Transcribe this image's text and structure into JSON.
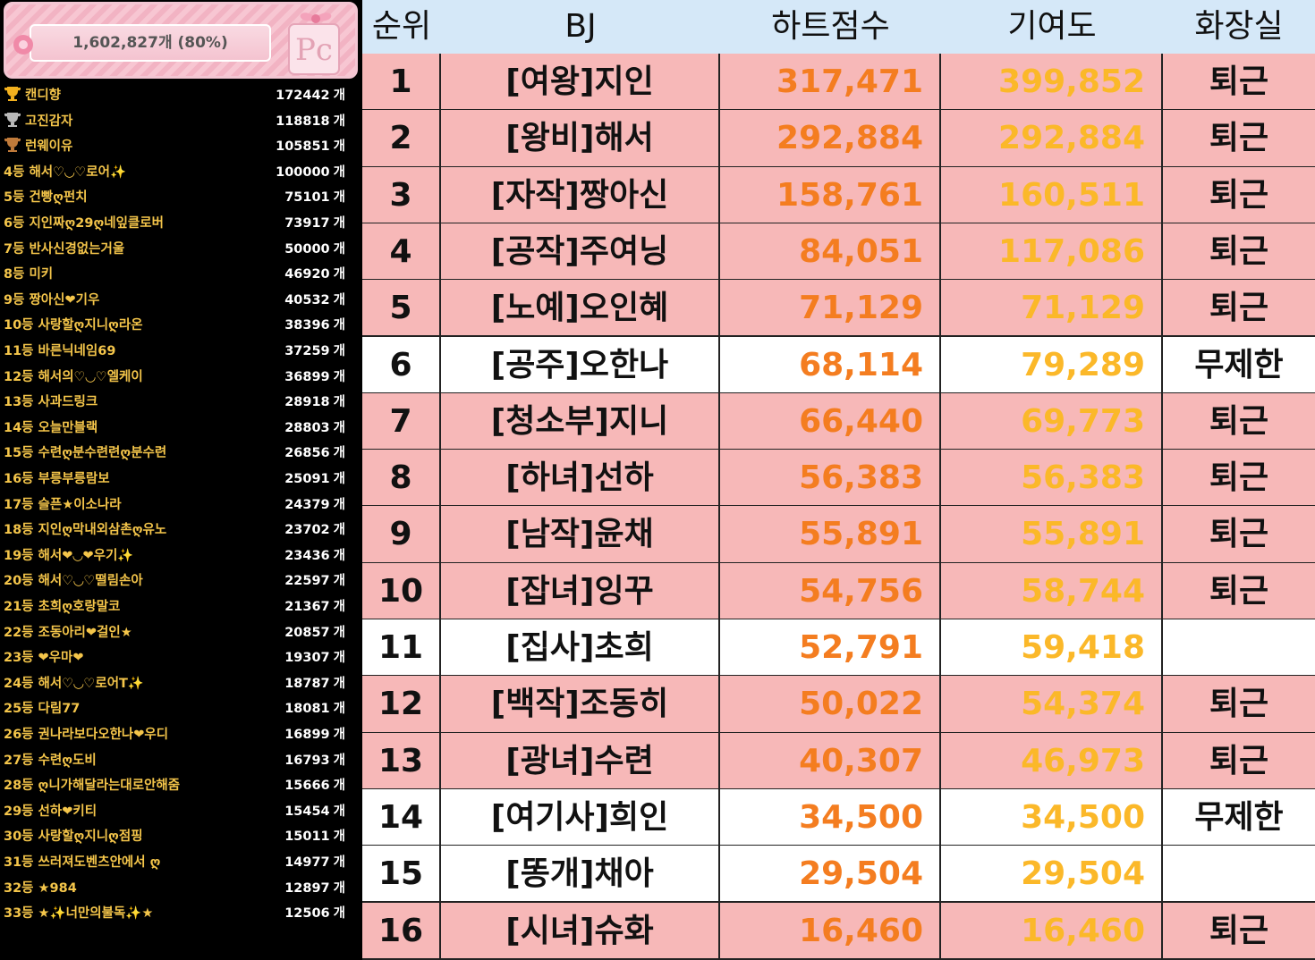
{
  "summary": {
    "total": "1,602,827개 (80%)"
  },
  "donors": {
    "unit": "개",
    "items": [
      {
        "rank": null,
        "trophy": "#f2b01e",
        "name": "캔디향",
        "count": "172442"
      },
      {
        "rank": null,
        "trophy": "#b9b9b9",
        "name": "고진감자",
        "count": "118818"
      },
      {
        "rank": null,
        "trophy": "#c07a3a",
        "name": "런웨이유",
        "count": "105851"
      },
      {
        "rank": "4등",
        "name": "해서♡◡♡로어✨",
        "count": "100000"
      },
      {
        "rank": "5등",
        "name": "건빵ღ펀치",
        "count": "75101"
      },
      {
        "rank": "6등",
        "name": "지인짜ღ29ღ네잎클로버",
        "count": "73917"
      },
      {
        "rank": "7등",
        "name": "반사신경없는거울",
        "count": "50000"
      },
      {
        "rank": "8등",
        "name": "미키",
        "count": "46920"
      },
      {
        "rank": "9등",
        "name": "짱아신❤기우",
        "count": "40532"
      },
      {
        "rank": "10등",
        "name": "사랑할ღ지니ღ라온",
        "count": "38396"
      },
      {
        "rank": "11등",
        "name": "바른닉네임69",
        "count": "37259"
      },
      {
        "rank": "12등",
        "name": "해서의♡◡♡엘케이",
        "count": "36899"
      },
      {
        "rank": "13등",
        "name": "사과드링크",
        "count": "28918"
      },
      {
        "rank": "14등",
        "name": "오늘만블랙",
        "count": "28803"
      },
      {
        "rank": "15등",
        "name": "수련ღ분수련련ღ분수련",
        "count": "26856"
      },
      {
        "rank": "16등",
        "name": "부릉부릉람보",
        "count": "25091"
      },
      {
        "rank": "17등",
        "name": "슬픈★이소나라",
        "count": "24379"
      },
      {
        "rank": "18등",
        "name": "지인ღ막내외삼촌ღ유노",
        "count": "23702"
      },
      {
        "rank": "19등",
        "name": "해서❤◡❤우기✨",
        "count": "23436"
      },
      {
        "rank": "20등",
        "name": "해서♡◡♡떨림손아",
        "count": "22597"
      },
      {
        "rank": "21등",
        "name": "초희ღ호랑말코",
        "count": "21367"
      },
      {
        "rank": "22등",
        "name": "조동아리❤걸인★",
        "count": "20857"
      },
      {
        "rank": "23등",
        "name": "❤우마❤",
        "count": "19307"
      },
      {
        "rank": "24등",
        "name": "해서♡◡♡로어T✨",
        "count": "18787"
      },
      {
        "rank": "25등",
        "name": "다림77",
        "count": "18081"
      },
      {
        "rank": "26등",
        "name": "권나라보다오한나❤우디",
        "count": "16899"
      },
      {
        "rank": "27등",
        "name": "수련ღ도비",
        "count": "16793"
      },
      {
        "rank": "28등",
        "name": "ღ니가해달라는대로안해줌",
        "count": "15666"
      },
      {
        "rank": "29등",
        "name": "선하❤키티",
        "count": "15454"
      },
      {
        "rank": "30등",
        "name": "사랑할ღ지니ღ점핑",
        "count": "15011"
      },
      {
        "rank": "31등",
        "name": "쓰러져도벤츠안에서 ღ",
        "count": "14977"
      },
      {
        "rank": "32등",
        "name": "★984",
        "count": "12897"
      },
      {
        "rank": "33등",
        "name": "★✨너만의불독✨★",
        "count": "12506"
      }
    ]
  },
  "table": {
    "header": [
      "순위",
      "BJ",
      "하트점수",
      "기여도",
      "화장실"
    ],
    "rows": [
      {
        "cells": [
          "1",
          "[여왕]지인",
          "317,471",
          "399,852",
          "퇴근"
        ],
        "background": "#f7b8b8"
      },
      {
        "cells": [
          "2",
          "[왕비]해서",
          "292,884",
          "292,884",
          "퇴근"
        ],
        "background": "#f7b8b8"
      },
      {
        "cells": [
          "3",
          "[자작]짱아신",
          "158,761",
          "160,511",
          "퇴근"
        ],
        "background": "#f7b8b8"
      },
      {
        "cells": [
          "4",
          "[공작]주여닝",
          "84,051",
          "117,086",
          "퇴근"
        ],
        "background": "#f7b8b8"
      },
      {
        "cells": [
          "5",
          "[노예]오인혜",
          "71,129",
          "71,129",
          "퇴근"
        ],
        "background": "#f7b8b8"
      },
      {
        "cells": [
          "6",
          "[공주]오한나",
          "68,114",
          "79,289",
          "무제한"
        ],
        "background": "#ffffff"
      },
      {
        "cells": [
          "7",
          "[청소부]지니",
          "66,440",
          "69,773",
          "퇴근"
        ],
        "background": "#f7b8b8"
      },
      {
        "cells": [
          "8",
          "[하녀]선하",
          "56,383",
          "56,383",
          "퇴근"
        ],
        "background": "#f7b8b8"
      },
      {
        "cells": [
          "9",
          "[남작]윤채",
          "55,891",
          "55,891",
          "퇴근"
        ],
        "background": "#f7b8b8"
      },
      {
        "cells": [
          "10",
          "[잡녀]잉꾸",
          "54,756",
          "58,744",
          "퇴근"
        ],
        "background": "#f7b8b8"
      },
      {
        "cells": [
          "11",
          "[집사]초희",
          "52,791",
          "59,418",
          null
        ],
        "background": "#ffffff"
      },
      {
        "cells": [
          "12",
          "[백작]조동히",
          "50,022",
          "54,374",
          "퇴근"
        ],
        "background": "#f7b8b8"
      },
      {
        "cells": [
          "13",
          "[광녀]수련",
          "40,307",
          "46,973",
          "퇴근"
        ],
        "background": "#f7b8b8"
      },
      {
        "cells": [
          "14",
          "[여기사]희인",
          "34,500",
          "34,500",
          "무제한"
        ],
        "background": "#ffffff"
      },
      {
        "cells": [
          "15",
          "[똥개]채아",
          "29,504",
          "29,504",
          null
        ],
        "background": "#ffffff"
      },
      {
        "cells": [
          "16",
          "[시녀]슈화",
          "16,460",
          "16,460",
          "퇴근"
        ],
        "background": "#f7b8b8"
      }
    ]
  }
}
